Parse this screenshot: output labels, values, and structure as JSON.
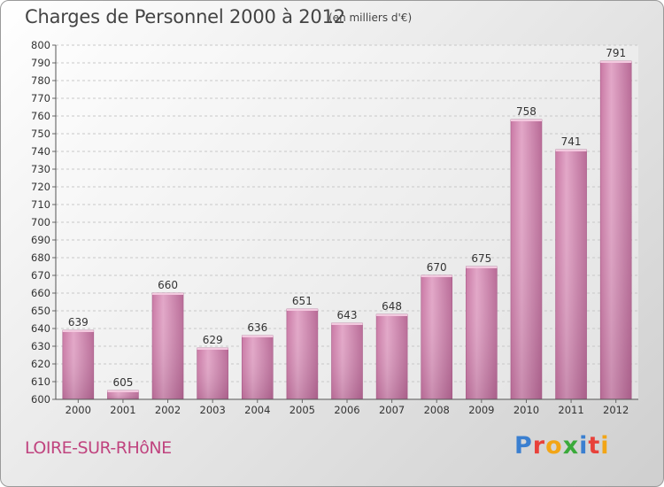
{
  "header": {
    "title": "Charges de Personnel 2000 à 2012",
    "subtitle": "(en milliers d'€)"
  },
  "footer": {
    "commune": "LOIRE-SUR-RHôNE",
    "logo_letters": [
      {
        "ch": "P",
        "color": "#3a7fd0"
      },
      {
        "ch": "r",
        "color": "#e8413a"
      },
      {
        "ch": "o",
        "color": "#f2a516"
      },
      {
        "ch": "x",
        "color": "#3aaa3a"
      },
      {
        "ch": "i",
        "color": "#3a7fd0"
      },
      {
        "ch": "t",
        "color": "#e8413a"
      },
      {
        "ch": "i",
        "color": "#f2a516"
      }
    ]
  },
  "chart_data": {
    "type": "bar",
    "title": "Charges de Personnel 2000 à 2012",
    "subtitle": "(en milliers d'€)",
    "categories": [
      "2000",
      "2001",
      "2002",
      "2003",
      "2004",
      "2005",
      "2006",
      "2007",
      "2008",
      "2009",
      "2010",
      "2011",
      "2012"
    ],
    "values": [
      639,
      605,
      660,
      629,
      636,
      651,
      643,
      648,
      670,
      675,
      758,
      741,
      791
    ],
    "ylim": [
      600,
      800
    ],
    "yticks": [
      600,
      610,
      620,
      630,
      640,
      650,
      660,
      670,
      680,
      690,
      700,
      710,
      720,
      730,
      740,
      750,
      760,
      770,
      780,
      790,
      800
    ],
    "grid": true,
    "bar_color": "#d98bb5",
    "bar_shade_color": "#b56b95"
  }
}
